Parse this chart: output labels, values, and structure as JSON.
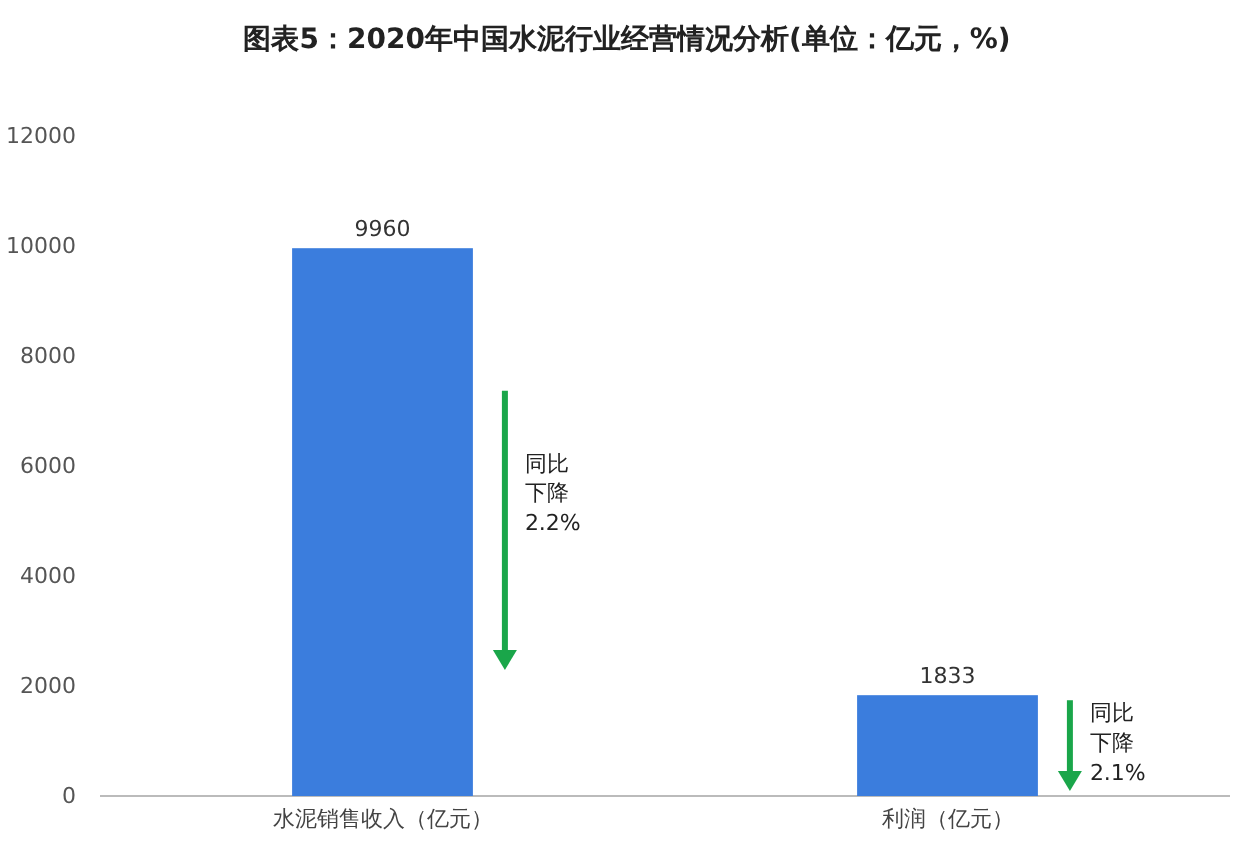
{
  "chart_data": {
    "type": "bar",
    "title": "图表5：2020年中国水泥行业经营情况分析(单位：亿元，%)",
    "categories": [
      "水泥销售收入（亿元）",
      "利润（亿元）"
    ],
    "values": [
      9960,
      1833
    ],
    "color": "#3b7ddd",
    "ylim": [
      0,
      12000
    ],
    "yticks": [
      0,
      2000,
      4000,
      6000,
      8000,
      10000,
      12000
    ],
    "grid": false,
    "data_labels": true,
    "annotations": [
      "同比下降2.2%",
      "同比下降2.1%"
    ]
  }
}
